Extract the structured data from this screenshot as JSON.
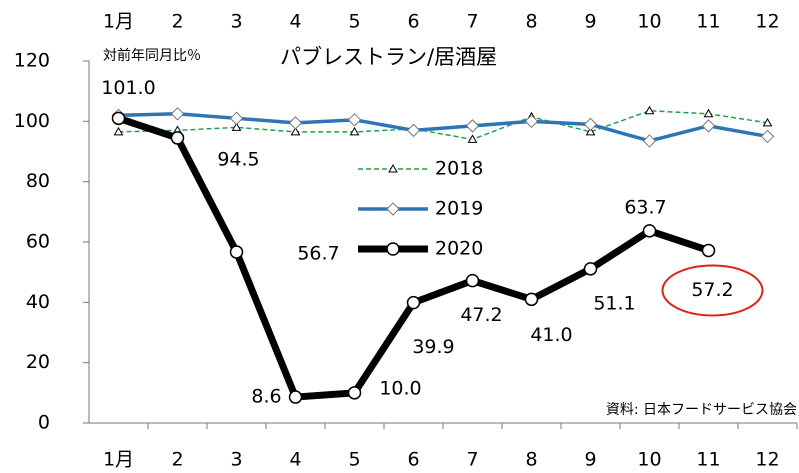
{
  "chart_data": {
    "type": "line",
    "title": "パブレストラン/居酒屋",
    "subtitle": "対前年同月比％",
    "source": "資料: 日本フードサービス協会",
    "categories": [
      "1月",
      "2",
      "3",
      "4",
      "5",
      "6",
      "7",
      "8",
      "9",
      "10",
      "11",
      "12"
    ],
    "ylim": [
      0,
      120
    ],
    "yticks": [
      0,
      20,
      40,
      60,
      80,
      100,
      120
    ],
    "grid": false,
    "series": [
      {
        "name": "2018",
        "color": "#22a04b",
        "marker": "triangle",
        "line_style": "dashed",
        "values": [
          96.5,
          97,
          98,
          96.5,
          96.5,
          97.5,
          94,
          101.5,
          96.5,
          103.5,
          102.5,
          99.5
        ]
      },
      {
        "name": "2019",
        "color": "#2e75b6",
        "marker": "diamond",
        "line_style": "solid",
        "values": [
          102,
          102.5,
          101,
          99.5,
          100.5,
          97,
          98.5,
          100,
          99,
          93.5,
          98.5,
          95
        ]
      },
      {
        "name": "2020",
        "color": "#000000",
        "marker": "circle",
        "line_style": "solid",
        "values": [
          101.0,
          94.5,
          56.7,
          8.6,
          10.0,
          39.9,
          47.2,
          41.0,
          51.1,
          63.7,
          57.2,
          null
        ],
        "value_labels": [
          "101.0",
          "94.5",
          "56.7",
          "8.6",
          "10.0",
          "39.9",
          "47.2",
          "41.0",
          "51.1",
          "63.7",
          "57.2",
          null
        ]
      }
    ]
  }
}
